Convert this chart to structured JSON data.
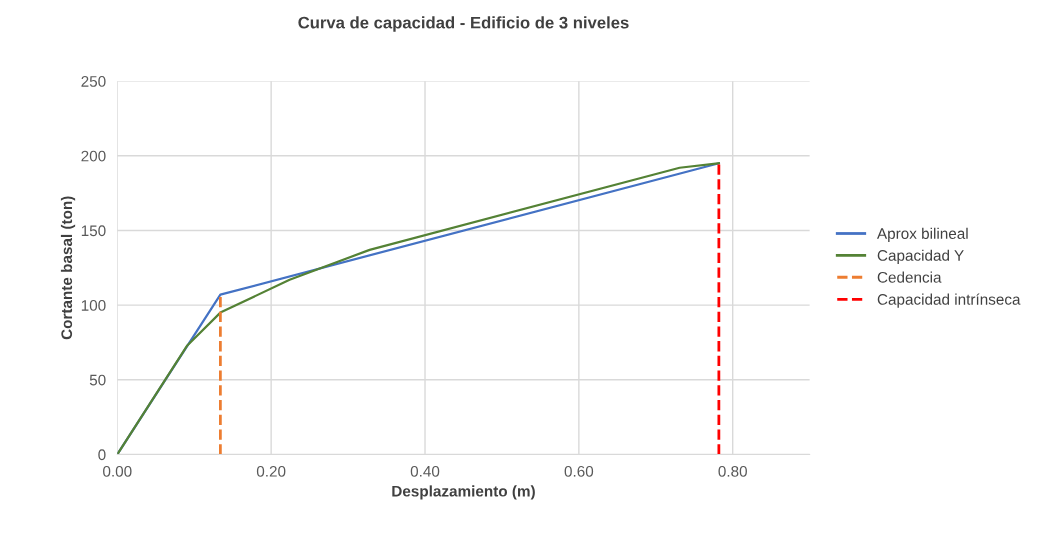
{
  "chart_data": {
    "type": "line",
    "title": "Curva de capacidad - Edificio de 3 niveles",
    "xlabel": "Desplazamiento (m)",
    "ylabel": "Cortante basal (ton)",
    "xlim": [
      0,
      0.9
    ],
    "xticks": [
      {
        "value": 0,
        "label": "0.00"
      },
      {
        "value": 0.2,
        "label": "0.20"
      },
      {
        "value": 0.4,
        "label": "0.40"
      },
      {
        "value": 0.6,
        "label": "0.60"
      },
      {
        "value": 0.8,
        "label": "0.80"
      }
    ],
    "ylim": [
      0,
      250
    ],
    "yticks": [
      0,
      50,
      100,
      150,
      200,
      250
    ],
    "grid": true,
    "legend": "right",
    "marker": "none",
    "series": [
      {
        "name": "Aprox bilineal",
        "color": "#4472c4",
        "line_style": "solid",
        "x": [
          0,
          0.134,
          0.782
        ],
        "values": [
          0,
          107,
          195
        ]
      },
      {
        "name": "Capacidad Y",
        "color": "#548235",
        "line_style": "solid",
        "x": [
          0,
          0.091,
          0.134,
          0.224,
          0.328,
          0.731,
          0.782
        ],
        "values": [
          0,
          73,
          95,
          117,
          137,
          192,
          195
        ]
      },
      {
        "name": "Cedencia",
        "color": "#ed7d31",
        "line_style": "dashed",
        "x": [
          0.134,
          0.134
        ],
        "values": [
          0,
          107
        ]
      },
      {
        "name": "Capacidad intrínseca",
        "color": "#ff0000",
        "line_style": "dashed",
        "x": [
          0.782,
          0.782
        ],
        "values": [
          0,
          195
        ]
      }
    ]
  }
}
